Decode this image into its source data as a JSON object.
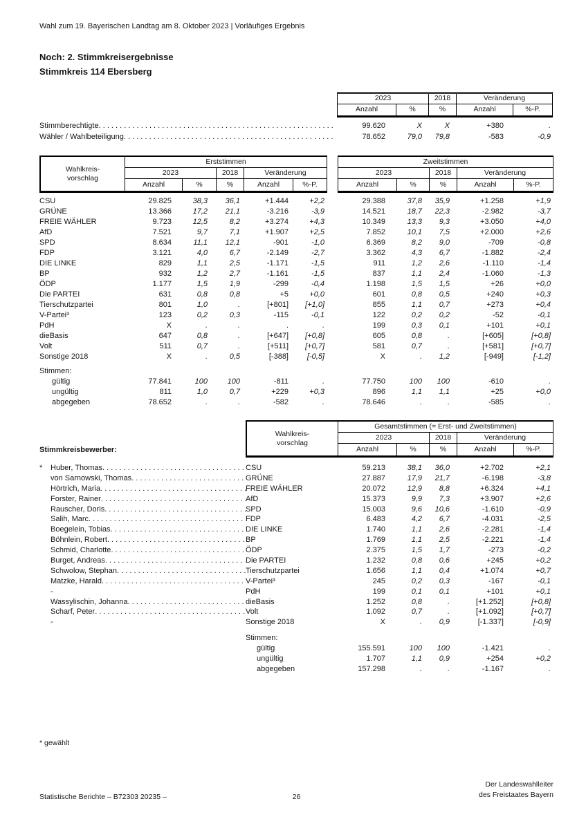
{
  "labels": {
    "y2023": "2023",
    "y2018": "2018",
    "change": "Veränderung",
    "anzahl": "Anzahl",
    "pct": "%",
    "pctp": "%-P.",
    "corner1": "Wahlkreis-",
    "corner2": "vorschlag",
    "stimmen": "Stimmen:"
  },
  "page": {
    "header": "Wahl zum 19. Bayerischen Landtag am 8. Oktober 2023 | Vorläufiges Ergebnis",
    "title_line1": "Noch: 2. Stimmkreisergebnisse",
    "title_line2": "Stimmkreis 114 Ebersberg",
    "footnote": "* gewählt",
    "footer_left": "Statistische Berichte – B72303 20235 –",
    "page_number": "26",
    "footer_right_line1": "Der Landeswahlleiter",
    "footer_right_line2": "des Freistaates Bayern"
  },
  "summary_table": {
    "rows": [
      {
        "label": "Stimmberechtigte",
        "values": [
          "99.620",
          "X",
          "X",
          "+380",
          "."
        ]
      },
      {
        "label": "Wähler / Wahlbeteiligung",
        "values": [
          "78.652",
          "79,0",
          "79,8",
          "-583",
          "-0,9"
        ]
      }
    ]
  },
  "main_table": {
    "erst_label": "Erststimmen",
    "zweit_label": "Zweitstimmen",
    "rows": [
      {
        "label": "CSU",
        "erst": [
          "29.825",
          "38,3",
          "36,1",
          "+1.444",
          "+2,2"
        ],
        "zweit": [
          "29.388",
          "37,8",
          "35,9",
          "+1.258",
          "+1,9"
        ]
      },
      {
        "label": "GRÜNE",
        "erst": [
          "13.366",
          "17,2",
          "21,1",
          "-3.216",
          "-3,9"
        ],
        "zweit": [
          "14.521",
          "18,7",
          "22,3",
          "-2.982",
          "-3,7"
        ]
      },
      {
        "label": "FREIE WÄHLER",
        "erst": [
          "9.723",
          "12,5",
          "8,2",
          "+3.274",
          "+4,3"
        ],
        "zweit": [
          "10.349",
          "13,3",
          "9,3",
          "+3.050",
          "+4,0"
        ]
      },
      {
        "label": "AfD",
        "erst": [
          "7.521",
          "9,7",
          "7,1",
          "+1.907",
          "+2,5"
        ],
        "zweit": [
          "7.852",
          "10,1",
          "7,5",
          "+2.000",
          "+2,6"
        ]
      },
      {
        "label": "SPD",
        "erst": [
          "8.634",
          "11,1",
          "12,1",
          "-901",
          "-1,0"
        ],
        "zweit": [
          "6.369",
          "8,2",
          "9,0",
          "-709",
          "-0,8"
        ]
      },
      {
        "label": "FDP",
        "erst": [
          "3.121",
          "4,0",
          "6,7",
          "-2.149",
          "-2,7"
        ],
        "zweit": [
          "3.362",
          "4,3",
          "6,7",
          "-1.882",
          "-2,4"
        ]
      },
      {
        "label": "DIE LINKE",
        "erst": [
          "829",
          "1,1",
          "2,5",
          "-1.171",
          "-1,5"
        ],
        "zweit": [
          "911",
          "1,2",
          "2,6",
          "-1.110",
          "-1,4"
        ]
      },
      {
        "label": "BP",
        "erst": [
          "932",
          "1,2",
          "2,7",
          "-1.161",
          "-1,5"
        ],
        "zweit": [
          "837",
          "1,1",
          "2,4",
          "-1.060",
          "-1,3"
        ]
      },
      {
        "label": "ÖDP",
        "erst": [
          "1.177",
          "1,5",
          "1,9",
          "-299",
          "-0,4"
        ],
        "zweit": [
          "1.198",
          "1,5",
          "1,5",
          "+26",
          "+0,0"
        ]
      },
      {
        "label": "Die PARTEI",
        "erst": [
          "631",
          "0,8",
          "0,8",
          "+5",
          "+0,0"
        ],
        "zweit": [
          "601",
          "0,8",
          "0,5",
          "+240",
          "+0,3"
        ]
      },
      {
        "label": "Tierschutzpartei",
        "erst": [
          "801",
          "1,0",
          ".",
          "[+801]",
          "[+1,0]"
        ],
        "zweit": [
          "855",
          "1,1",
          "0,7",
          "+273",
          "+0,4"
        ]
      },
      {
        "label": "V-Partei³",
        "erst": [
          "123",
          "0,2",
          "0,3",
          "-115",
          "-0,1"
        ],
        "zweit": [
          "122",
          "0,2",
          "0,2",
          "-52",
          "-0,1"
        ]
      },
      {
        "label": "PdH",
        "erst": [
          "X",
          ".",
          ".",
          ".",
          "."
        ],
        "zweit": [
          "199",
          "0,3",
          "0,1",
          "+101",
          "+0,1"
        ]
      },
      {
        "label": "dieBasis",
        "erst": [
          "647",
          "0,8",
          ".",
          "[+647]",
          "[+0,8]"
        ],
        "zweit": [
          "605",
          "0,8",
          ".",
          "[+605]",
          "[+0,8]"
        ]
      },
      {
        "label": "Volt",
        "erst": [
          "511",
          "0,7",
          ".",
          "[+511]",
          "[+0,7]"
        ],
        "zweit": [
          "581",
          "0,7",
          ".",
          "[+581]",
          "[+0,7]"
        ]
      },
      {
        "label": "Sonstige 2018",
        "erst": [
          "X",
          ".",
          "0,5",
          "[-388]",
          "[-0,5]"
        ],
        "zweit": [
          "X",
          ".",
          "1,2",
          "[-949]",
          "[-1,2]"
        ]
      }
    ],
    "stimmen_rows": [
      {
        "label": "gültig",
        "erst": [
          "77.841",
          "100",
          "100",
          "-811",
          "."
        ],
        "zweit": [
          "77.750",
          "100",
          "100",
          "-610",
          "."
        ]
      },
      {
        "label": "ungültig",
        "erst": [
          "811",
          "1,0",
          "0,7",
          "+229",
          "+0,3"
        ],
        "zweit": [
          "896",
          "1,1",
          "1,1",
          "+25",
          "+0,0"
        ]
      },
      {
        "label": "abgegeben",
        "erst": [
          "78.652",
          ".",
          ".",
          "-582",
          "."
        ],
        "zweit": [
          "78.646",
          ".",
          ".",
          "-585",
          "."
        ]
      }
    ]
  },
  "candidates_table": {
    "section_label": "Stimmkreisbewerber:",
    "gesamt_label": "Gesamtstimmen (= Erst- und Zweitstimmen)",
    "rows": [
      {
        "star": "*",
        "name": "Huber, Thomas",
        "party": "CSU",
        "values": [
          "59.213",
          "38,1",
          "36,0",
          "+2.702",
          "+2,1"
        ]
      },
      {
        "star": "",
        "name": "von Sarnowski, Thomas",
        "party": "GRÜNE",
        "values": [
          "27.887",
          "17,9",
          "21,7",
          "-6.198",
          "-3,8"
        ]
      },
      {
        "star": "",
        "name": "Hörtrich, Maria",
        "party": "FREIE WÄHLER",
        "values": [
          "20.072",
          "12,9",
          "8,8",
          "+6.324",
          "+4,1"
        ]
      },
      {
        "star": "",
        "name": "Forster, Rainer",
        "party": "AfD",
        "values": [
          "15.373",
          "9,9",
          "7,3",
          "+3.907",
          "+2,6"
        ]
      },
      {
        "star": "",
        "name": "Rauscher, Doris",
        "party": "SPD",
        "values": [
          "15.003",
          "9,6",
          "10,6",
          "-1.610",
          "-0,9"
        ]
      },
      {
        "star": "",
        "name": "Salih, Marc",
        "party": "FDP",
        "values": [
          "6.483",
          "4,2",
          "6,7",
          "-4.031",
          "-2,5"
        ]
      },
      {
        "star": "",
        "name": "Boegelein, Tobias",
        "party": "DIE LINKE",
        "values": [
          "1.740",
          "1,1",
          "2,6",
          "-2.281",
          "-1,4"
        ]
      },
      {
        "star": "",
        "name": "Böhnlein, Robert",
        "party": "BP",
        "values": [
          "1.769",
          "1,1",
          "2,5",
          "-2.221",
          "-1,4"
        ]
      },
      {
        "star": "",
        "name": "Schmid, Charlotte",
        "party": "ÖDP",
        "values": [
          "2.375",
          "1,5",
          "1,7",
          "-273",
          "-0,2"
        ]
      },
      {
        "star": "",
        "name": "Burget, Andreas",
        "party": "Die PARTEI",
        "values": [
          "1.232",
          "0,8",
          "0,6",
          "+245",
          "+0,2"
        ]
      },
      {
        "star": "",
        "name": "Schwolow, Stephan",
        "party": "Tierschutzpartei",
        "values": [
          "1.656",
          "1,1",
          "0,4",
          "+1.074",
          "+0,7"
        ]
      },
      {
        "star": "",
        "name": "Matzke, Harald",
        "party": "V-Partei³",
        "values": [
          "245",
          "0,2",
          "0,3",
          "-167",
          "-0,1"
        ]
      },
      {
        "star": "",
        "name": "-",
        "party": "PdH",
        "values": [
          "199",
          "0,1",
          "0,1",
          "+101",
          "+0,1"
        ]
      },
      {
        "star": "",
        "name": "Wassylischin, Johanna",
        "party": "dieBasis",
        "values": [
          "1.252",
          "0,8",
          ".",
          "[+1.252]",
          "[+0,8]"
        ]
      },
      {
        "star": "",
        "name": "Scharf, Peter",
        "party": "Volt",
        "values": [
          "1.092",
          "0,7",
          ".",
          "[+1.092]",
          "[+0,7]"
        ]
      },
      {
        "star": "",
        "name": "-",
        "party": "Sonstige 2018",
        "values": [
          "X",
          ".",
          "0,9",
          "[-1.337]",
          "[-0,9]"
        ]
      }
    ],
    "stimmen_rows": [
      {
        "label": "gültig",
        "values": [
          "155.591",
          "100",
          "100",
          "-1.421",
          "."
        ]
      },
      {
        "label": "ungültig",
        "values": [
          "1.707",
          "1,1",
          "0,9",
          "+254",
          "+0,2"
        ]
      },
      {
        "label": "abgegeben",
        "values": [
          "157.298",
          ".",
          ".",
          "-1.167",
          "."
        ]
      }
    ]
  }
}
